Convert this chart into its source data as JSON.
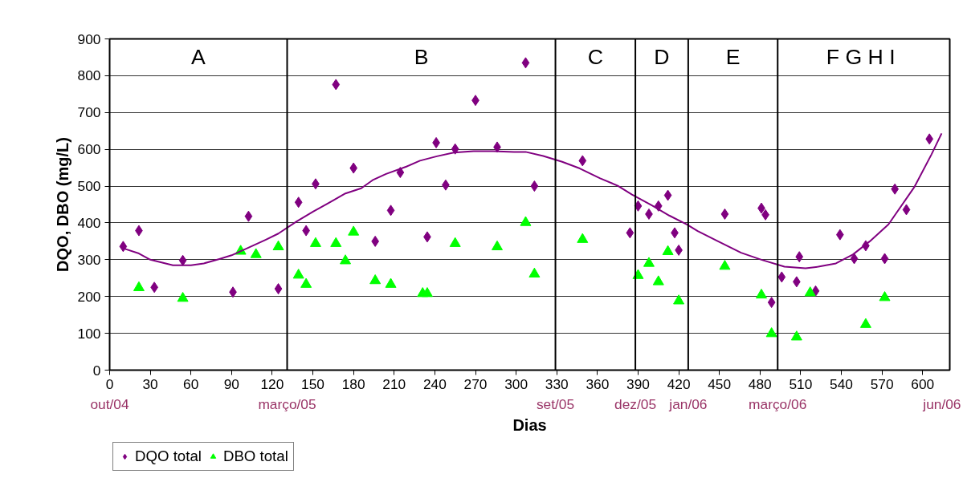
{
  "chart_data": {
    "type": "scatter",
    "xlabel": "Dias",
    "ylabel": "DQO, DBO (mg/L)",
    "xlim": [
      0,
      620
    ],
    "xticks": [
      0,
      30,
      60,
      90,
      120,
      150,
      180,
      210,
      240,
      270,
      300,
      330,
      360,
      390,
      420,
      450,
      480,
      510,
      540,
      570,
      600
    ],
    "ylim": [
      0,
      900
    ],
    "yticks": [
      0,
      100,
      200,
      300,
      400,
      500,
      600,
      700,
      800,
      900
    ],
    "grid": "y",
    "legend": "bottom left",
    "series": [
      {
        "name": "DQO total",
        "color": "#800080",
        "marker": "diamond",
        "x": [
          10,
          21.6,
          33,
          54,
          91,
          102.5,
          124.5,
          139.4,
          145,
          152,
          167,
          180,
          196,
          207.5,
          214.5,
          234.4,
          241,
          248,
          255,
          270,
          286,
          307,
          313.5,
          349,
          384,
          390,
          398,
          405,
          412,
          417,
          420,
          454,
          481,
          484,
          488.5,
          496,
          507,
          509,
          521,
          539,
          549.5,
          558,
          572,
          579.5,
          588,
          605
        ],
        "values": [
          336,
          379,
          225,
          298,
          212,
          418,
          221,
          456,
          379,
          506,
          776,
          549,
          350,
          434,
          537,
          362,
          618,
          503,
          601,
          733,
          606,
          835,
          500,
          569,
          373,
          446,
          424,
          446,
          475,
          373,
          326,
          424,
          440,
          422,
          184,
          253,
          240,
          308,
          215,
          368,
          303,
          338,
          303,
          492,
          436,
          628
        ]
      },
      {
        "name": "DBO total",
        "color": "#00ff00",
        "marker": "triangle",
        "x": [
          21.6,
          54,
          96.7,
          108,
          124.5,
          139.4,
          145,
          152,
          167,
          174,
          180,
          196,
          207.5,
          231,
          234.4,
          255,
          286,
          307,
          313.5,
          349,
          390,
          398,
          405,
          412,
          420,
          454,
          481,
          488.5,
          507,
          517,
          558,
          572
        ],
        "values": [
          224,
          195,
          323,
          314,
          335,
          258,
          233,
          344,
          344,
          297,
          375,
          243,
          233,
          208,
          208,
          344,
          335,
          401,
          261,
          355,
          257,
          290,
          240,
          322,
          188,
          282,
          204,
          99,
          90,
          210,
          124,
          197
        ]
      },
      {
        "type": "line",
        "color": "#800080",
        "line_style": "solid",
        "x": [
          10,
          21.6,
          30,
          46.7,
          60,
          69.5,
          81,
          90,
          102.7,
          115,
          124.5,
          138,
          150.4,
          165,
          174,
          185.7,
          194,
          204,
          219,
          229,
          241.5,
          254,
          268.6,
          283,
          298.5,
          307,
          320,
          334,
          347,
          362,
          375,
          385.5,
          400.5,
          413,
          426,
          434,
          449,
          466,
          481,
          498,
          513.6,
          523,
          536,
          548.5,
          561,
          574.8,
          593.8,
          606.5,
          614
        ],
        "values": [
          331,
          317,
          300,
          285,
          285,
          290,
          302,
          312,
          333,
          354,
          371,
          404,
          431,
          461,
          480,
          494,
          516,
          533,
          553,
          569,
          581,
          591,
          595,
          595,
          593,
          593,
          582,
          566,
          548,
          521,
          501,
          477,
          447,
          420,
          396,
          378,
          350,
          319,
          300,
          281,
          277,
          281,
          290,
          314,
          350,
          396,
          497,
          586,
          643
        ]
      }
    ],
    "ref_lines": [
      {
        "axis": "x",
        "value": 131,
        "color": "#000000"
      },
      {
        "axis": "x",
        "value": 329,
        "color": "#000000"
      },
      {
        "axis": "x",
        "value": 388,
        "color": "#000000"
      },
      {
        "axis": "x",
        "value": 427,
        "color": "#000000"
      },
      {
        "axis": "x",
        "value": 493,
        "color": "#000000"
      }
    ],
    "annotations": [
      "A",
      "B",
      "C",
      "D",
      "E",
      "F  G H I",
      "out/04",
      "março/05",
      "set/05",
      "dez/05",
      "jan/06",
      "março/06",
      "jun/06"
    ]
  }
}
